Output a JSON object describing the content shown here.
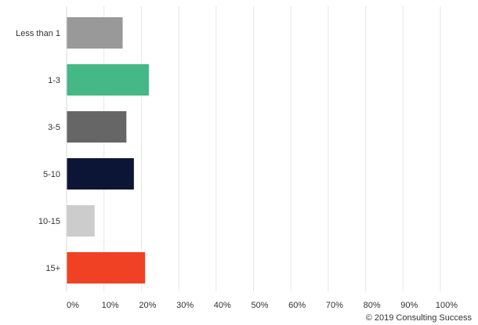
{
  "chart_data": {
    "type": "bar",
    "orientation": "horizontal",
    "categories": [
      "Less than 1",
      "1-3",
      "3-5",
      "5-10",
      "10-15",
      "15+"
    ],
    "values": [
      15,
      22,
      16,
      18,
      7.5,
      21
    ],
    "colors": [
      "#999999",
      "#45b887",
      "#666666",
      "#0d1537",
      "#cccccc",
      "#f04124"
    ],
    "x_ticks": [
      "0%",
      "10%",
      "20%",
      "30%",
      "40%",
      "50%",
      "60%",
      "70%",
      "80%",
      "90%",
      "100%"
    ],
    "xlim": [
      0,
      100
    ],
    "grid": true,
    "legend": "none"
  },
  "credit": "© 2019 Consulting Success"
}
